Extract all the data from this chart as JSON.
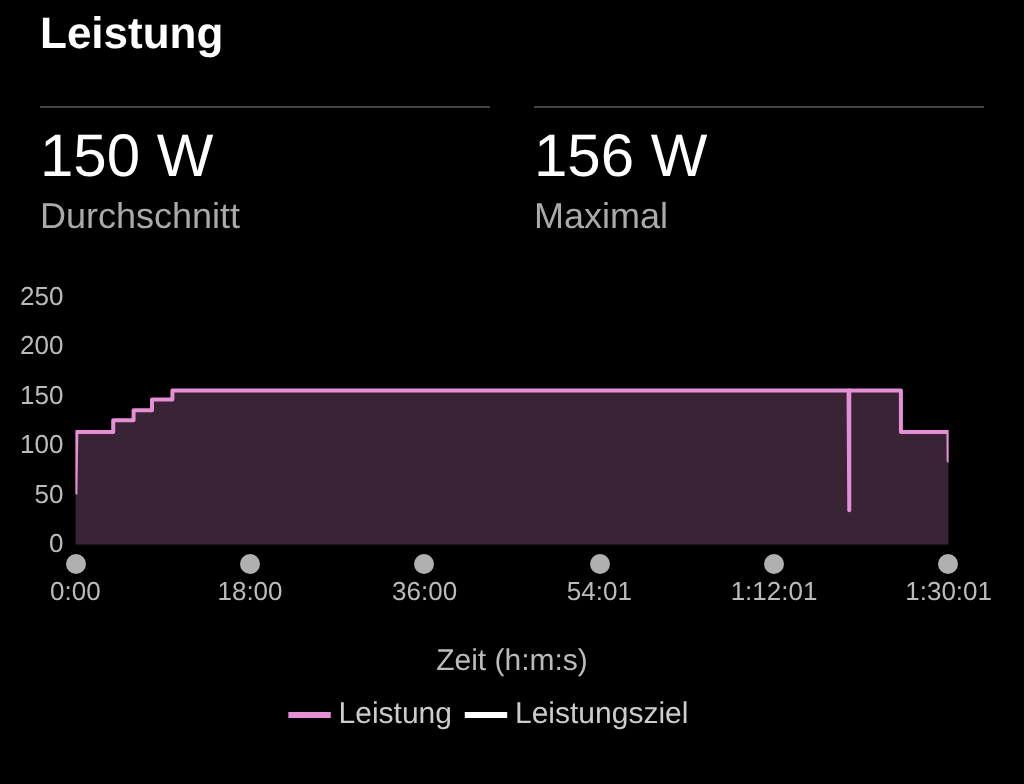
{
  "chart_data": {
    "type": "area",
    "title": "Leistung",
    "xlabel": "Zeit (h:m:s)",
    "annotations": [
      "150 W",
      "Durchschnitt",
      "156 W",
      "Maximal"
    ],
    "x": [
      0,
      0.1,
      3.9,
      3.9,
      6.0,
      6.0,
      7.9,
      7.9,
      10.0,
      10.0,
      79.7,
      79.75,
      79.8,
      85.1,
      85.1,
      90.0,
      90.0167
    ],
    "series": [
      {
        "name": "Leistung",
        "color": "#e58fd6",
        "values": [
          51,
          114,
          114,
          126,
          126,
          136,
          136,
          147,
          147,
          156,
          156,
          35,
          156,
          156,
          114,
          114,
          85
        ]
      },
      {
        "name": "Leistungsziel",
        "color": "#ffffff",
        "values": [
          null,
          null,
          null,
          null,
          null,
          null,
          null,
          null,
          null,
          null,
          null,
          null,
          null,
          null,
          null,
          null,
          null
        ]
      }
    ],
    "xlim": [
      0,
      90.0167
    ],
    "xticks": [
      {
        "value": 0,
        "label": "0:00"
      },
      {
        "value": 18,
        "label": "18:00"
      },
      {
        "value": 36,
        "label": "36:00"
      },
      {
        "value": 54.0167,
        "label": "54:01"
      },
      {
        "value": 72.0167,
        "label": "1:12:01"
      },
      {
        "value": 90.0167,
        "label": "1:30:01"
      }
    ],
    "ylim": [
      0,
      250
    ],
    "yticks": [
      0,
      50,
      100,
      150,
      200,
      250
    ],
    "grid": false,
    "legend": "bottom",
    "marker": "none"
  }
}
